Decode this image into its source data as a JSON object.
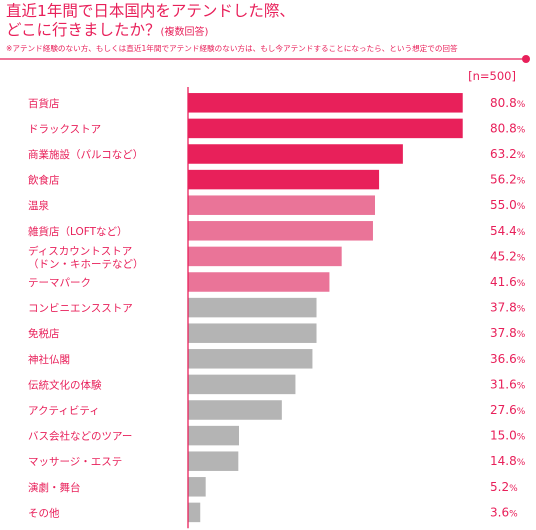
{
  "title": {
    "line1": "直近1年間で日本国内をアテンドした際、",
    "line2_main": "どこに行きましたか？",
    "line2_note": "(複数回答)",
    "note": "※アテンド経験のない方、もしくは直近1年間でアテンド経験のない方は、もし今アテンドすることになったら、という想定での回答"
  },
  "colors": {
    "accent": "#e8205a",
    "mid": "#ea7498",
    "gray": "#b4b4b4",
    "text": "#e8205a"
  },
  "chart_data": {
    "type": "bar",
    "orientation": "horizontal",
    "sample": "[n=500]",
    "unit": "%",
    "xlim": [
      0,
      100
    ],
    "categories": [
      [
        "百貨店"
      ],
      [
        "ドラックストア"
      ],
      [
        "商業施設（パルコなど）"
      ],
      [
        "飲食店"
      ],
      [
        "温泉"
      ],
      [
        "雑貨店（LOFTなど）"
      ],
      [
        "ディスカウントストア",
        "（ドン・キホーテなど）"
      ],
      [
        "テーマパーク"
      ],
      [
        "コンビニエンスストア"
      ],
      [
        "免税店"
      ],
      [
        "神社仏閣"
      ],
      [
        "伝統文化の体験"
      ],
      [
        "アクティビティ"
      ],
      [
        "バス会社などのツアー"
      ],
      [
        "マッサージ・エステ"
      ],
      [
        "演劇・舞台"
      ],
      [
        "その他"
      ]
    ],
    "values": [
      80.8,
      80.8,
      63.2,
      56.2,
      55.0,
      54.4,
      45.2,
      41.6,
      37.8,
      37.8,
      36.6,
      31.6,
      27.6,
      15.0,
      14.8,
      5.2,
      3.6
    ],
    "value_labels": [
      "80.8%",
      "80.8%",
      "63.2%",
      "56.2%",
      "55.0%",
      "54.4%",
      "45.2%",
      "41.6%",
      "37.8%",
      "37.8%",
      "36.6%",
      "31.6%",
      "27.6%",
      "15.0%",
      "14.8%",
      "5.2%",
      "3.6%"
    ],
    "bar_color_groups": [
      "accent",
      "accent",
      "accent",
      "accent",
      "mid",
      "mid",
      "mid",
      "mid",
      "gray",
      "gray",
      "gray",
      "gray",
      "gray",
      "gray",
      "gray",
      "gray",
      "gray"
    ]
  }
}
